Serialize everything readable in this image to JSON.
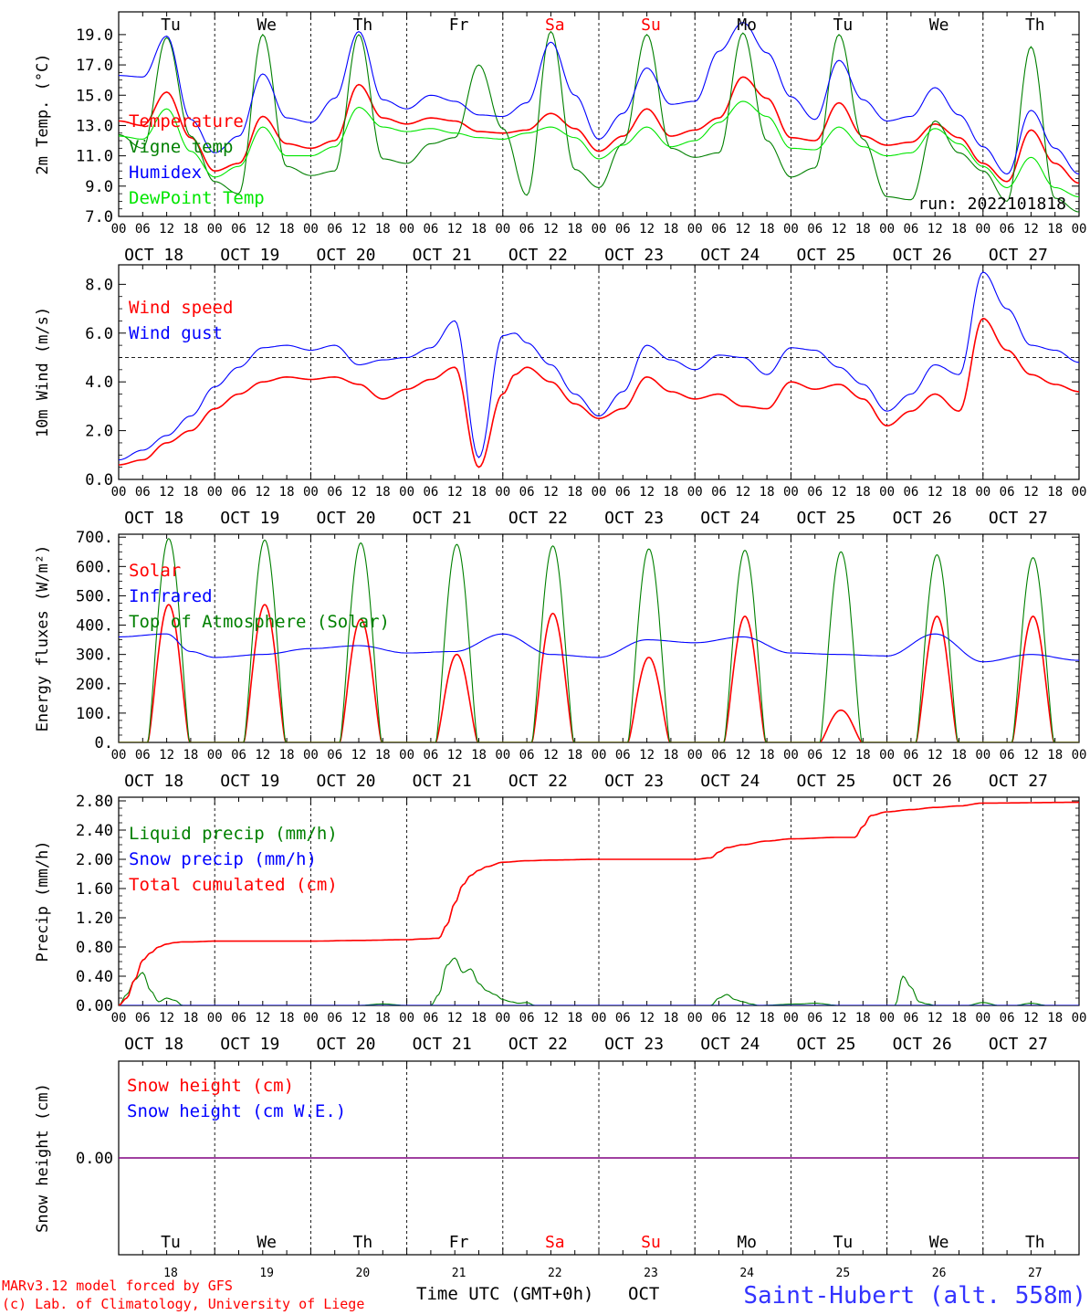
{
  "colors": {
    "red": "#ff0000",
    "green": "#008000",
    "blue": "#0000ff",
    "lightgreen": "#00e600",
    "purple": "#800080",
    "credit_blue": "#3333ff"
  },
  "days": {
    "top_labels": [
      "Tu",
      "We",
      "Th",
      "Fr",
      "Sa",
      "Su",
      "Mo",
      "Tu",
      "We",
      "Th"
    ],
    "weekend_indices": [
      4,
      5
    ],
    "date_labels": [
      "OCT 18",
      "OCT 19",
      "OCT 20",
      "OCT 21",
      "OCT 22",
      "OCT 23",
      "OCT 24",
      "OCT 25",
      "OCT 26",
      "OCT 27"
    ],
    "hour_labels": [
      "00",
      "06",
      "12",
      "18"
    ],
    "hour_end": "00",
    "day_numbers": [
      "18",
      "19",
      "20",
      "21",
      "22",
      "23",
      "24",
      "25",
      "26",
      "27"
    ]
  },
  "run_label": "run: 2022101818",
  "footer": {
    "credit_line1": "MARv3.12 model forced by GFS",
    "credit_line2": "(c) Lab. of Climatology, University of Liege",
    "time_label": "Time UTC (GMT+0h)",
    "month_label": "OCT",
    "station": "Saint-Hubert (alt. 558m)"
  },
  "chart_data": [
    {
      "id": "temp",
      "type": "line",
      "ylabel": "2m Temp. (°C)",
      "ylim": [
        7.0,
        20.5
      ],
      "yticks": [
        "7.0",
        "9.0",
        "11.0",
        "13.0",
        "15.0",
        "17.0",
        "19.0"
      ],
      "x_unit": "hours since OCT 18 00 UTC",
      "series": [
        {
          "name": "Temperature",
          "color": "red",
          "x": [
            0,
            6,
            12,
            18,
            24,
            30,
            36,
            42,
            48,
            54,
            60,
            66,
            72,
            78,
            84,
            90,
            96,
            102,
            108,
            114,
            120,
            126,
            132,
            138,
            144,
            150,
            156,
            162,
            168,
            174,
            180,
            186,
            192,
            198,
            204,
            210,
            216,
            222,
            228,
            234,
            240
          ],
          "y": [
            13.3,
            13.0,
            15.2,
            12.2,
            10.0,
            10.5,
            13.6,
            11.8,
            11.5,
            12.0,
            15.7,
            13.5,
            13.1,
            13.5,
            13.3,
            12.6,
            12.5,
            12.7,
            13.8,
            12.8,
            11.3,
            12.3,
            14.1,
            12.3,
            12.7,
            13.5,
            16.2,
            14.8,
            12.2,
            12.0,
            14.5,
            12.3,
            11.7,
            11.9,
            13.1,
            12.2,
            10.5,
            9.3,
            12.7,
            10.5,
            9.2
          ]
        },
        {
          "name": "Vigne temp",
          "color": "green",
          "x": [
            0,
            6,
            12,
            18,
            24,
            30,
            36,
            42,
            48,
            54,
            60,
            66,
            72,
            78,
            84,
            90,
            96,
            102,
            108,
            114,
            120,
            126,
            132,
            138,
            144,
            150,
            156,
            162,
            168,
            174,
            180,
            186,
            192,
            198,
            204,
            210,
            216,
            222,
            228,
            234,
            240
          ],
          "y": [
            12.4,
            11.5,
            18.8,
            12.3,
            9.3,
            8.5,
            19.0,
            10.3,
            9.7,
            10.0,
            19.0,
            10.8,
            10.5,
            11.8,
            12.2,
            17.0,
            12.8,
            8.4,
            19.2,
            10.1,
            8.9,
            11.8,
            19.0,
            11.5,
            10.9,
            11.2,
            19.1,
            12.0,
            9.6,
            10.2,
            19.0,
            12.1,
            8.3,
            8.1,
            13.3,
            11.2,
            10.0,
            8.0,
            18.2,
            8.2,
            7.3
          ]
        },
        {
          "name": "Humidex",
          "color": "blue",
          "x": [
            0,
            6,
            12,
            18,
            24,
            30,
            36,
            42,
            48,
            54,
            60,
            66,
            72,
            78,
            84,
            90,
            96,
            102,
            108,
            114,
            120,
            126,
            132,
            138,
            144,
            150,
            156,
            162,
            168,
            174,
            180,
            186,
            192,
            198,
            204,
            210,
            216,
            222,
            228,
            234,
            240
          ],
          "y": [
            16.3,
            16.2,
            18.9,
            13.4,
            11.2,
            12.3,
            16.4,
            13.5,
            13.2,
            14.8,
            19.2,
            14.7,
            14.1,
            15.0,
            14.6,
            13.7,
            13.6,
            14.5,
            18.5,
            15.0,
            12.1,
            13.8,
            16.8,
            14.4,
            14.6,
            17.9,
            19.8,
            17.8,
            14.9,
            13.4,
            17.3,
            14.7,
            13.3,
            13.6,
            15.5,
            13.7,
            11.6,
            9.8,
            14.0,
            11.5,
            9.8
          ]
        },
        {
          "name": "DewPoint Temp",
          "color": "lightgreen",
          "x": [
            0,
            6,
            12,
            18,
            24,
            30,
            36,
            42,
            48,
            54,
            60,
            66,
            72,
            78,
            84,
            90,
            96,
            102,
            108,
            114,
            120,
            126,
            132,
            138,
            144,
            150,
            156,
            162,
            168,
            174,
            180,
            186,
            192,
            198,
            204,
            210,
            216,
            222,
            228,
            234,
            240
          ],
          "y": [
            12.3,
            12.1,
            14.1,
            11.3,
            9.6,
            10.3,
            12.9,
            11.0,
            11.0,
            11.6,
            14.2,
            12.9,
            12.6,
            12.8,
            12.5,
            12.2,
            12.1,
            12.5,
            12.9,
            12.2,
            10.8,
            11.7,
            12.9,
            11.6,
            12.0,
            13.2,
            14.6,
            13.6,
            11.5,
            11.4,
            12.9,
            11.6,
            11.0,
            11.2,
            12.8,
            11.8,
            10.3,
            8.9,
            10.9,
            8.9,
            8.3
          ]
        }
      ]
    },
    {
      "id": "wind",
      "type": "line",
      "ylabel": "10m Wind (m/s)",
      "ylim": [
        0,
        8.8
      ],
      "yticks": [
        "0.0",
        "2.0",
        "4.0",
        "6.0",
        "8.0"
      ],
      "reference_line": 5.0,
      "series": [
        {
          "name": "Wind speed",
          "color": "red",
          "x": [
            0,
            6,
            12,
            18,
            24,
            30,
            36,
            42,
            48,
            54,
            60,
            66,
            72,
            78,
            84,
            90,
            96,
            99,
            102,
            108,
            114,
            120,
            126,
            132,
            138,
            144,
            150,
            156,
            162,
            168,
            174,
            180,
            186,
            192,
            198,
            204,
            210,
            216,
            222,
            228,
            234,
            240
          ],
          "y": [
            0.6,
            0.8,
            1.5,
            2.0,
            2.9,
            3.5,
            4.0,
            4.2,
            4.1,
            4.2,
            3.9,
            3.3,
            3.7,
            4.1,
            4.6,
            0.5,
            3.5,
            4.3,
            4.6,
            4.0,
            3.1,
            2.5,
            2.9,
            4.2,
            3.6,
            3.3,
            3.5,
            3.0,
            2.9,
            4.0,
            3.7,
            3.9,
            3.3,
            2.2,
            2.8,
            3.5,
            2.8,
            6.6,
            5.3,
            4.3,
            3.9,
            3.6
          ]
        },
        {
          "name": "Wind gust",
          "color": "blue",
          "x": [
            0,
            6,
            12,
            18,
            24,
            30,
            36,
            42,
            48,
            54,
            60,
            66,
            72,
            78,
            84,
            90,
            96,
            99,
            102,
            108,
            114,
            120,
            126,
            132,
            138,
            144,
            150,
            156,
            162,
            168,
            174,
            180,
            186,
            192,
            198,
            204,
            210,
            216,
            222,
            228,
            234,
            240
          ],
          "y": [
            0.8,
            1.2,
            1.8,
            2.6,
            3.8,
            4.6,
            5.4,
            5.5,
            5.3,
            5.5,
            4.7,
            4.9,
            5.0,
            5.4,
            6.5,
            0.9,
            5.9,
            6.0,
            5.6,
            4.7,
            3.5,
            2.6,
            3.6,
            5.5,
            4.9,
            4.5,
            5.1,
            5.0,
            4.3,
            5.4,
            5.3,
            4.6,
            3.9,
            2.8,
            3.5,
            4.7,
            4.3,
            8.5,
            7.0,
            5.5,
            5.3,
            4.8
          ]
        }
      ]
    },
    {
      "id": "energy",
      "type": "line",
      "ylabel": "Energy fluxes (W/m²)",
      "ylim": [
        0,
        710
      ],
      "yticks": [
        "0.",
        "100.",
        "200.",
        "300.",
        "400.",
        "500.",
        "600.",
        "700."
      ],
      "solar_noon_hour": 12.5,
      "daylight_hours": 10.4,
      "series": [
        {
          "name": "Solar",
          "color": "red",
          "daily_peak": [
            470,
            470,
            420,
            300,
            440,
            290,
            430,
            110,
            430,
            430
          ]
        },
        {
          "name": "Infrared",
          "color": "blue",
          "x": [
            0,
            12,
            18,
            24,
            36,
            48,
            60,
            72,
            84,
            96,
            108,
            120,
            132,
            144,
            156,
            168,
            180,
            192,
            204,
            216,
            228,
            240
          ],
          "y": [
            360,
            370,
            310,
            290,
            300,
            320,
            330,
            305,
            310,
            370,
            300,
            290,
            350,
            340,
            360,
            305,
            300,
            295,
            370,
            275,
            300,
            280
          ]
        },
        {
          "name": "Top of Atmosphere (Solar)",
          "color": "green",
          "daily_peak": [
            695,
            690,
            680,
            675,
            670,
            660,
            655,
            650,
            640,
            630
          ]
        }
      ]
    },
    {
      "id": "precip",
      "type": "line",
      "ylabel": "Precip (mm/h)",
      "ylim": [
        0,
        2.85
      ],
      "yticks": [
        "0.00",
        "0.40",
        "0.80",
        "1.20",
        "1.60",
        "2.00",
        "2.40",
        "2.80"
      ],
      "series": [
        {
          "name": "Liquid precip (mm/h)",
          "color": "green",
          "x": [
            0,
            2,
            4,
            6,
            8,
            10,
            12,
            14,
            16,
            18,
            60,
            66,
            72,
            78,
            80,
            82,
            84,
            86,
            88,
            90,
            92,
            94,
            96,
            98,
            100,
            102,
            104,
            108,
            148,
            150,
            152,
            154,
            156,
            158,
            160,
            170,
            174,
            180,
            188,
            194,
            196,
            198,
            200,
            202,
            204,
            212,
            216,
            220,
            224,
            228,
            232,
            240
          ],
          "y": [
            0,
            0.15,
            0.35,
            0.45,
            0.2,
            0.05,
            0.1,
            0.07,
            0,
            0,
            0,
            0.02,
            0,
            0,
            0.15,
            0.55,
            0.65,
            0.45,
            0.5,
            0.3,
            0.2,
            0.15,
            0.08,
            0.05,
            0.03,
            0.04,
            0,
            0,
            0,
            0.1,
            0.15,
            0.08,
            0.05,
            0.02,
            0,
            0.02,
            0.03,
            0,
            0,
            0,
            0.4,
            0.25,
            0.05,
            0.02,
            0,
            0,
            0.04,
            0,
            0,
            0.03,
            0,
            0
          ]
        },
        {
          "name": "Snow precip (mm/h)",
          "color": "blue",
          "x": [
            0,
            240
          ],
          "y": [
            0,
            0
          ]
        },
        {
          "name": "Total cumulated (cm)",
          "color": "red",
          "x": [
            0,
            2,
            4,
            6,
            8,
            10,
            12,
            14,
            16,
            18,
            24,
            48,
            60,
            72,
            76,
            80,
            82,
            84,
            86,
            88,
            90,
            92,
            96,
            102,
            108,
            120,
            144,
            148,
            150,
            152,
            156,
            162,
            168,
            180,
            184,
            186,
            188,
            192,
            198,
            204,
            210,
            216,
            240
          ],
          "y": [
            0,
            0.1,
            0.35,
            0.62,
            0.72,
            0.8,
            0.84,
            0.86,
            0.87,
            0.87,
            0.88,
            0.88,
            0.89,
            0.9,
            0.91,
            0.92,
            1.1,
            1.4,
            1.65,
            1.78,
            1.85,
            1.9,
            1.96,
            1.98,
            1.99,
            2.0,
            2.0,
            2.02,
            2.1,
            2.16,
            2.2,
            2.25,
            2.28,
            2.3,
            2.3,
            2.45,
            2.6,
            2.65,
            2.68,
            2.71,
            2.73,
            2.77,
            2.78
          ]
        }
      ]
    },
    {
      "id": "snow",
      "type": "line",
      "ylabel": "Snow height (cm)",
      "ylim": [
        -1,
        1
      ],
      "yticks": [
        "0.00"
      ],
      "series": [
        {
          "name": "Snow height (cm)",
          "color": "red",
          "x": [
            0,
            240
          ],
          "y": [
            0,
            0
          ]
        },
        {
          "name": "Snow height (cm W.E.)",
          "color": "blue",
          "x": [
            0,
            240
          ],
          "y": [
            0,
            0
          ]
        }
      ]
    }
  ]
}
